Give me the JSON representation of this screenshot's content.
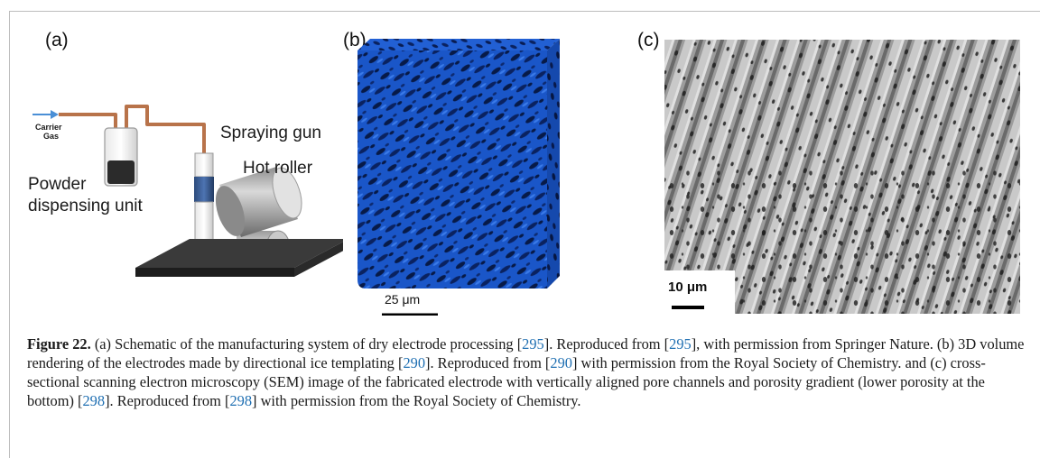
{
  "figure": {
    "panel_a": {
      "label": "(a)",
      "carrier_gas_line1": "Carrier",
      "carrier_gas_line2": "Gas",
      "spraying_gun": "Spraying gun",
      "hot_roller": "Hot roller",
      "powder_line1": "Powder",
      "powder_line2": "dispensing unit"
    },
    "panel_b": {
      "label": "(b)",
      "scale_bar": "25 μm"
    },
    "panel_c": {
      "label": "(c)",
      "scale_bar": "10 μm"
    },
    "colors": {
      "volume_blue": "#1a56c8",
      "sem_gray": "#9a9a9a",
      "pipe_copper": "#b8734a",
      "arrow_blue": "#4a8fd6",
      "reference_blue": "#1f6fb2"
    }
  },
  "caption": {
    "label": "Figure 22.",
    "seg1": " (a) Schematic of the manufacturing system of dry electrode processing [",
    "ref1": "295",
    "seg2": "]. Reproduced from [",
    "ref2": "295",
    "seg3": "], with permission from Springer Nature. (b) 3D volume rendering of the electrodes made by directional ice templating [",
    "ref3": "290",
    "seg4": "]. Reproduced from [",
    "ref4": "290",
    "seg5": "] with permission from the Royal Society of Chemistry. and (c) cross-sectional scanning electron microscopy (SEM) image of the fabricated electrode with vertically aligned pore channels and porosity gradient (lower porosity at the bottom) [",
    "ref5": "298",
    "seg6": "]. Reproduced from [",
    "ref6": "298",
    "seg7": "] with permission from the Royal Society of Chemistry."
  }
}
